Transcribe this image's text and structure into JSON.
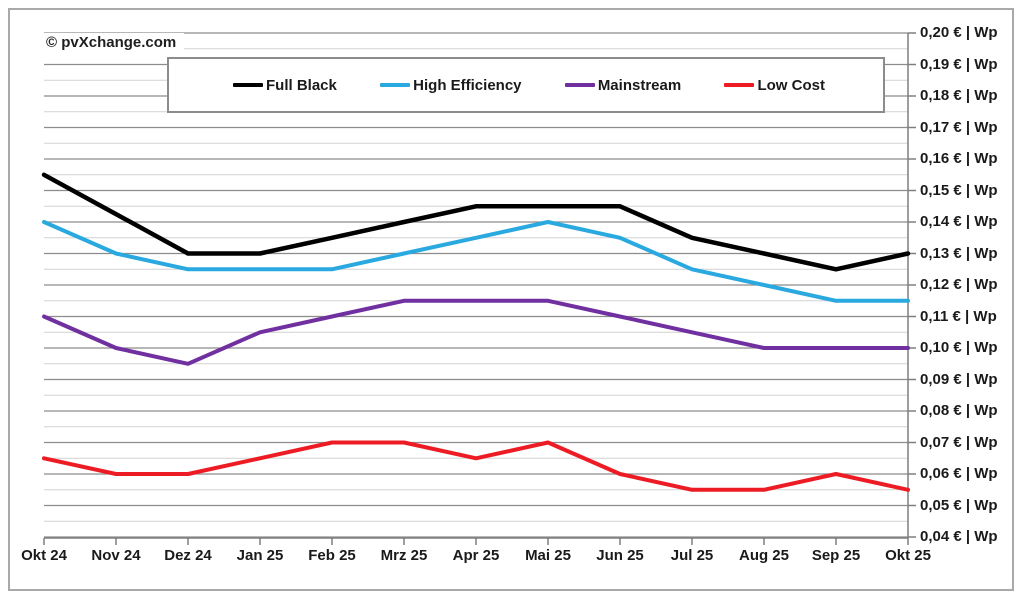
{
  "figure": {
    "copyright": "© pvXchange.com"
  },
  "chart_data": {
    "type": "line",
    "title": "",
    "xlabel": "",
    "ylabel": "€ | Wp",
    "categories": [
      "Okt 24",
      "Nov 24",
      "Dez 24",
      "Jan 25",
      "Feb 25",
      "Mrz 25",
      "Apr 25",
      "Mai 25",
      "Jun 25",
      "Jul 25",
      "Aug 25",
      "Sep 25",
      "Okt 25"
    ],
    "series": [
      {
        "name": "Full Black",
        "color": "#000000",
        "values": [
          0.155,
          0.1425,
          0.13,
          0.13,
          0.135,
          0.14,
          0.145,
          0.145,
          0.145,
          0.135,
          0.13,
          0.125,
          0.13
        ]
      },
      {
        "name": "High Efficiency",
        "color": "#29a9e0",
        "values": [
          0.14,
          0.13,
          0.125,
          0.125,
          0.125,
          0.13,
          0.135,
          0.14,
          0.135,
          0.125,
          0.12,
          0.115,
          0.115
        ]
      },
      {
        "name": "Mainstream",
        "color": "#7030a0",
        "values": [
          0.11,
          0.1,
          0.095,
          0.105,
          0.11,
          0.115,
          0.115,
          0.115,
          0.11,
          0.105,
          0.1,
          0.1,
          0.1
        ]
      },
      {
        "name": "Low Cost",
        "color": "#ed1c24",
        "values": [
          0.065,
          0.06,
          0.06,
          0.065,
          0.07,
          0.07,
          0.065,
          0.07,
          0.06,
          0.055,
          0.055,
          0.06,
          0.055
        ]
      }
    ],
    "ylim": [
      0.04,
      0.2
    ],
    "ytick_step": 0.01,
    "minor_grid_step": 0.005,
    "ytick_labels": [
      "0,20 € | Wp",
      "0,19 € | Wp",
      "0,18 € | Wp",
      "0,17 € | Wp",
      "0,16 € | Wp",
      "0,15 € | Wp",
      "0,14 € | Wp",
      "0,13 € | Wp",
      "0,12 € | Wp",
      "0,11 € | Wp",
      "0,10 € | Wp",
      "0,09 € | Wp",
      "0,08 € | Wp",
      "0,07 € | Wp",
      "0,06 € | Wp",
      "0,05 € | Wp",
      "0,04 € | Wp"
    ],
    "grid": true,
    "yaxis_side": "right",
    "legend_position": "top",
    "colors": {
      "major_grid": "#8c8c8c",
      "minor_grid": "#d2d2d2",
      "axis": "#7f7f7f",
      "text": "#1a1a1a"
    }
  }
}
